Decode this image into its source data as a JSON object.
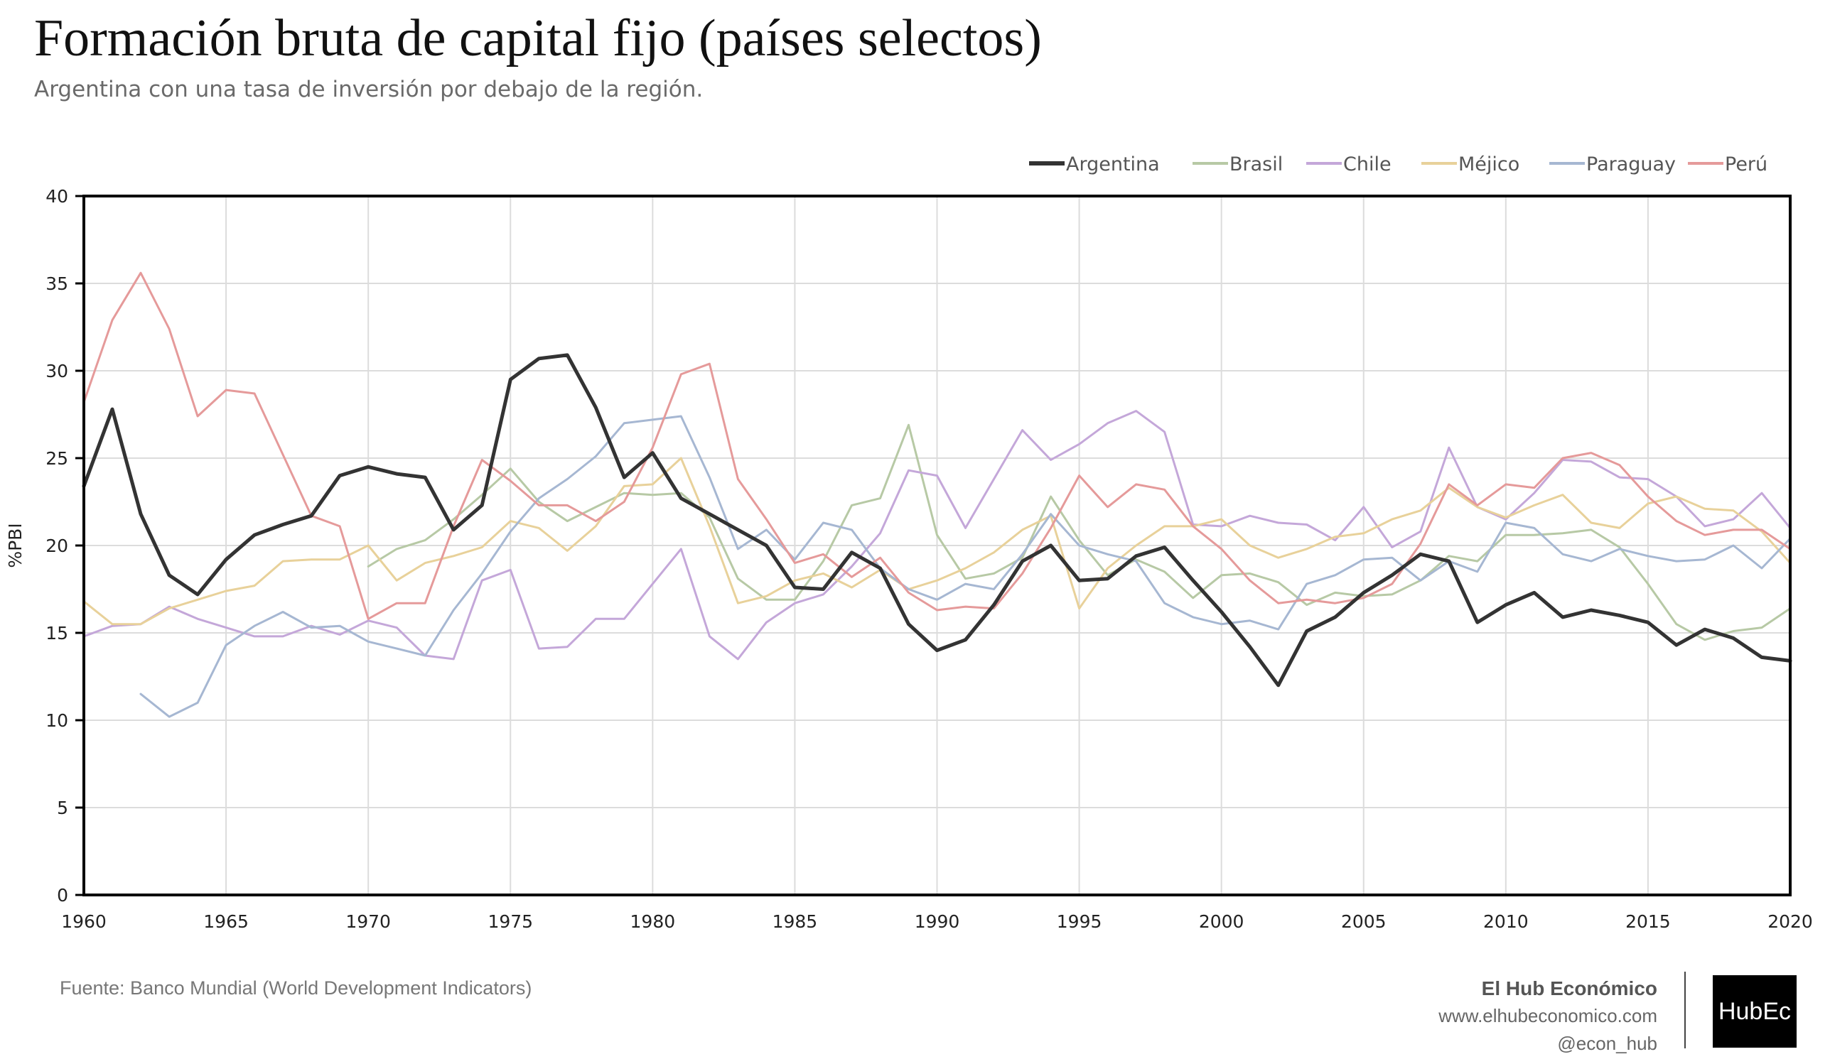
{
  "header": {
    "title": "Formación bruta de capital fijo (países selectos)",
    "subtitle": "Argentina con una tasa de inversión por debajo de la región."
  },
  "footer": {
    "source": "Fuente: Banco Mundial (World Development Indicators)",
    "brand_name": "El Hub Económico",
    "website": "www.elhubeconomico.com",
    "handle": "@econ_hub",
    "logo_text": "HubEc"
  },
  "chart_data": {
    "type": "line",
    "title": "Formación bruta de capital fijo (países selectos)",
    "subtitle": "Argentina con una tasa de inversión por debajo de la región.",
    "xlabel": "",
    "ylabel": "%PBI",
    "xlim": [
      1960,
      2020
    ],
    "ylim": [
      0,
      40
    ],
    "x_ticks": [
      1960,
      1965,
      1970,
      1975,
      1980,
      1985,
      1990,
      1995,
      2000,
      2005,
      2010,
      2015,
      2020
    ],
    "y_ticks": [
      0,
      5,
      10,
      15,
      20,
      25,
      30,
      35,
      40
    ],
    "grid": true,
    "legend_position": "top-right",
    "x": [
      1960,
      1961,
      1962,
      1963,
      1964,
      1965,
      1966,
      1967,
      1968,
      1969,
      1970,
      1971,
      1972,
      1973,
      1974,
      1975,
      1976,
      1977,
      1978,
      1979,
      1980,
      1981,
      1982,
      1983,
      1984,
      1985,
      1986,
      1987,
      1988,
      1989,
      1990,
      1991,
      1992,
      1993,
      1994,
      1995,
      1996,
      1997,
      1998,
      1999,
      2000,
      2001,
      2002,
      2003,
      2004,
      2005,
      2006,
      2007,
      2008,
      2009,
      2010,
      2011,
      2012,
      2013,
      2014,
      2015,
      2016,
      2017,
      2018,
      2019,
      2020
    ],
    "series": [
      {
        "name": "Argentina",
        "color": "#333333",
        "width": 5,
        "values": [
          23.4,
          27.8,
          21.8,
          18.3,
          17.2,
          19.2,
          20.6,
          21.2,
          21.7,
          24.0,
          24.5,
          24.1,
          23.9,
          20.9,
          22.3,
          29.5,
          30.7,
          30.9,
          27.9,
          23.9,
          25.3,
          22.7,
          21.8,
          20.9,
          20.0,
          17.6,
          17.5,
          19.6,
          18.7,
          15.5,
          14.0,
          14.6,
          16.6,
          19.1,
          20.0,
          18.0,
          18.1,
          19.4,
          19.9,
          18.0,
          16.2,
          14.2,
          12.0,
          15.1,
          15.9,
          17.3,
          18.3,
          19.5,
          19.1,
          15.6,
          16.6,
          17.3,
          15.9,
          16.3,
          16.0,
          15.6,
          14.3,
          15.2,
          14.7,
          13.6,
          13.4
        ]
      },
      {
        "name": "Brasil",
        "color": "#b7c9a5",
        "width": 3,
        "values": [
          null,
          null,
          null,
          null,
          null,
          null,
          null,
          null,
          null,
          null,
          18.8,
          19.8,
          20.3,
          21.5,
          22.9,
          24.4,
          22.5,
          21.4,
          22.2,
          23.0,
          22.9,
          23.0,
          21.6,
          18.1,
          16.9,
          16.9,
          19.1,
          22.3,
          22.7,
          26.9,
          20.6,
          18.1,
          18.4,
          19.3,
          22.8,
          20.3,
          18.3,
          19.2,
          18.5,
          17.0,
          18.3,
          18.4,
          17.9,
          16.6,
          17.3,
          17.1,
          17.2,
          18.0,
          19.4,
          19.1,
          20.6,
          20.6,
          20.7,
          20.9,
          19.9,
          17.8,
          15.5,
          14.6,
          15.1,
          15.3,
          16.4
        ]
      },
      {
        "name": "Chile",
        "color": "#c4a7d9",
        "width": 3,
        "values": [
          14.8,
          15.4,
          15.5,
          16.5,
          15.8,
          15.3,
          14.8,
          14.8,
          15.4,
          14.9,
          15.7,
          15.3,
          13.7,
          13.5,
          18.0,
          18.6,
          14.1,
          14.2,
          15.8,
          15.8,
          17.8,
          19.8,
          14.8,
          13.5,
          15.6,
          16.7,
          17.2,
          18.8,
          20.7,
          24.3,
          24.0,
          21.0,
          23.8,
          26.6,
          24.9,
          25.8,
          27.0,
          27.7,
          26.5,
          21.2,
          21.1,
          21.7,
          21.3,
          21.2,
          20.3,
          22.2,
          19.9,
          20.8,
          25.6,
          22.2,
          21.5,
          23.0,
          24.9,
          24.8,
          23.9,
          23.8,
          22.8,
          21.1,
          21.5,
          23.0,
          21.0
        ]
      },
      {
        "name": "Méjico",
        "color": "#e8d19a",
        "width": 3,
        "values": [
          16.8,
          15.5,
          15.5,
          16.4,
          16.9,
          17.4,
          17.7,
          19.1,
          19.2,
          19.2,
          20.0,
          18.0,
          19.0,
          19.4,
          19.9,
          21.4,
          21.0,
          19.7,
          21.1,
          23.4,
          23.5,
          25.0,
          21.1,
          16.7,
          17.1,
          18.0,
          18.4,
          17.6,
          18.6,
          17.5,
          18.0,
          18.7,
          19.6,
          20.9,
          21.7,
          16.4,
          18.7,
          20.0,
          21.1,
          21.1,
          21.5,
          20.0,
          19.3,
          19.8,
          20.5,
          20.7,
          21.5,
          22.0,
          23.3,
          22.2,
          21.6,
          22.3,
          22.9,
          21.3,
          21.0,
          22.4,
          22.8,
          22.1,
          22.0,
          20.8,
          19.0
        ]
      },
      {
        "name": "Paraguay",
        "color": "#a6b7d2",
        "width": 3,
        "values": [
          null,
          null,
          11.5,
          10.2,
          11.0,
          14.3,
          15.4,
          16.2,
          15.3,
          15.4,
          14.5,
          14.1,
          13.7,
          16.3,
          18.4,
          20.8,
          22.7,
          23.8,
          25.1,
          27.0,
          27.2,
          27.4,
          23.9,
          19.8,
          20.9,
          19.2,
          21.3,
          20.9,
          18.7,
          17.5,
          16.9,
          17.8,
          17.5,
          19.5,
          21.8,
          20.0,
          19.5,
          19.1,
          16.7,
          15.9,
          15.5,
          15.7,
          15.2,
          17.8,
          18.3,
          19.2,
          19.3,
          18.0,
          19.1,
          18.5,
          21.3,
          21.0,
          19.5,
          19.1,
          19.8,
          19.4,
          19.1,
          19.2,
          20.0,
          18.7,
          20.4
        ]
      },
      {
        "name": "Perú",
        "color": "#e59a9a",
        "width": 3,
        "values": [
          28.2,
          32.9,
          35.6,
          32.4,
          27.4,
          28.9,
          28.7,
          25.2,
          21.7,
          21.1,
          15.8,
          16.7,
          16.7,
          21.1,
          24.9,
          23.7,
          22.3,
          22.3,
          21.4,
          22.5,
          25.6,
          29.8,
          30.4,
          23.8,
          21.5,
          19.0,
          19.5,
          18.2,
          19.3,
          17.3,
          16.3,
          16.5,
          16.4,
          18.4,
          21.0,
          24.0,
          22.2,
          23.5,
          23.2,
          21.1,
          19.8,
          18.0,
          16.7,
          16.9,
          16.7,
          17.0,
          17.8,
          20.1,
          23.5,
          22.3,
          23.5,
          23.3,
          25.0,
          25.3,
          24.6,
          22.8,
          21.4,
          20.6,
          20.9,
          20.9,
          19.8
        ]
      }
    ]
  }
}
